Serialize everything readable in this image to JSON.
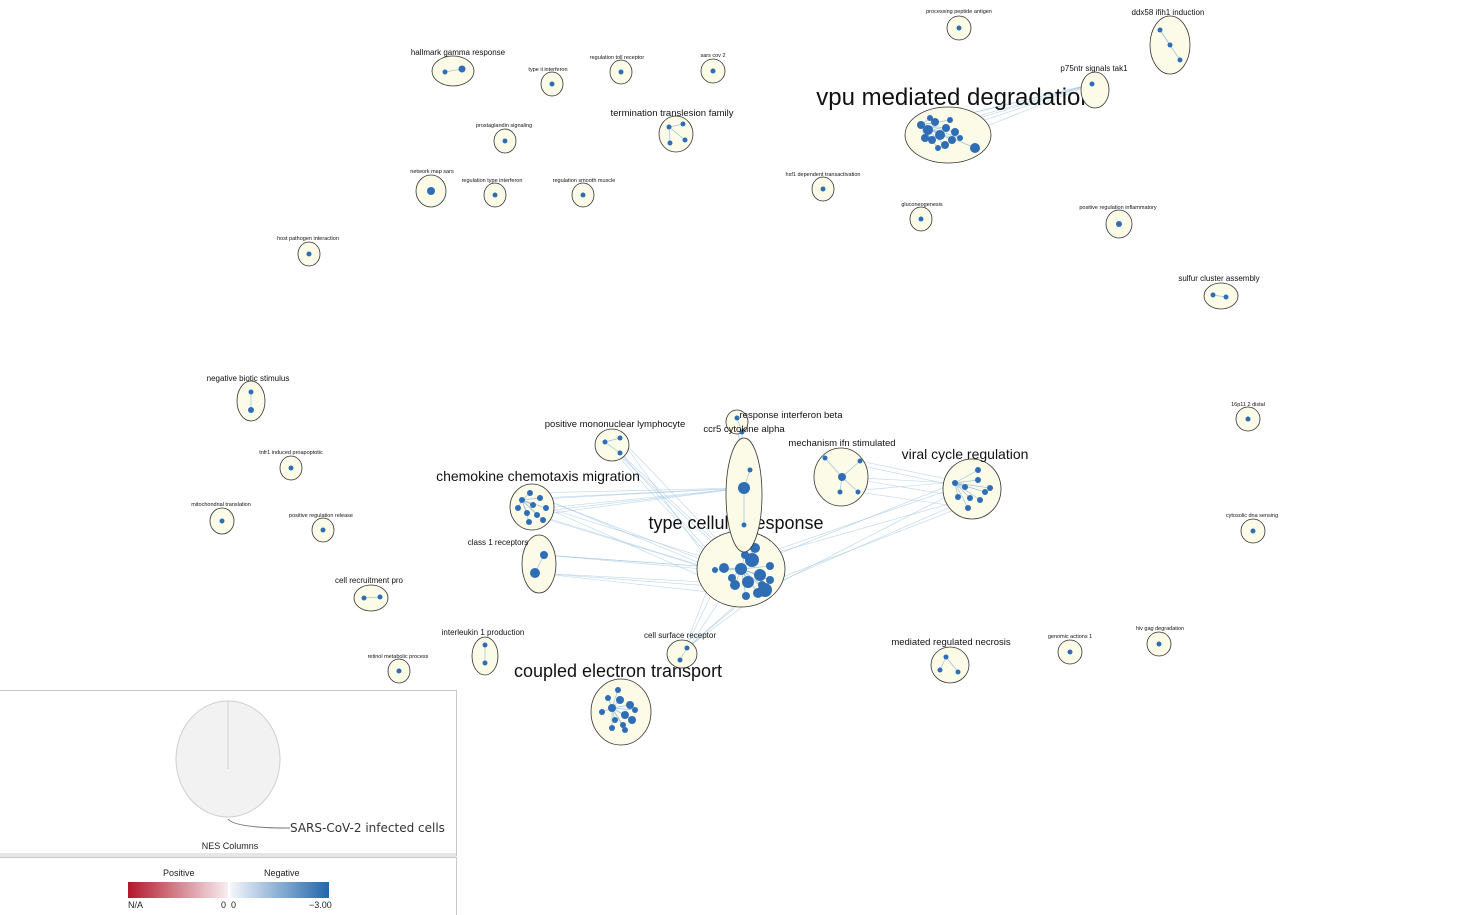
{
  "clusters": [
    {
      "label": "vpu mediated degradation",
      "size": "xl"
    },
    {
      "label": "type cellular response",
      "size": "l"
    },
    {
      "label": "coupled electron transport",
      "size": "l"
    },
    {
      "label": "chemokine chemotaxis migration",
      "size": "m"
    },
    {
      "label": "viral cycle regulation",
      "size": "m"
    },
    {
      "label": "mechanism ifn stimulated",
      "size": "s"
    },
    {
      "label": "positive mononuclear lymphocyte",
      "size": "s"
    },
    {
      "label": "response interferon beta",
      "size": "s"
    },
    {
      "label": "ccr5 cytokine alpha",
      "size": "s"
    },
    {
      "label": "class 1 receptors",
      "size": "xs"
    },
    {
      "label": "cell surface receptor",
      "size": "xs"
    },
    {
      "label": "interleukin 1 production",
      "size": "xs"
    },
    {
      "label": "mediated regulated necrosis",
      "size": "s"
    },
    {
      "label": "termination translesion family",
      "size": "s"
    },
    {
      "label": "hallmark gamma response",
      "size": "xs"
    },
    {
      "label": "ddx58 ifih1 induction",
      "size": "xs"
    },
    {
      "label": "p75ntr signals tak1",
      "size": "xs"
    },
    {
      "label": "negative biotic stimulus",
      "size": "xs"
    },
    {
      "label": "cell recruitment pro",
      "size": "xs"
    },
    {
      "label": "sulfur cluster assembly",
      "size": "xs"
    },
    {
      "label": "processing peptide antigen",
      "size": "xxs"
    },
    {
      "label": "type ii interferon",
      "size": "xxs"
    },
    {
      "label": "regulation toll receptor",
      "size": "xxs"
    },
    {
      "label": "sars cov 2",
      "size": "xxs"
    },
    {
      "label": "prostaglandin signaling",
      "size": "xxs"
    },
    {
      "label": "network map sars",
      "size": "xxs"
    },
    {
      "label": "regulation type interferon",
      "size": "xxs"
    },
    {
      "label": "regulation smooth muscle",
      "size": "xxs"
    },
    {
      "label": "hsf1 dependent transactivation",
      "size": "xxs"
    },
    {
      "label": "gluconeogenesis",
      "size": "xxs"
    },
    {
      "label": "positive regulation inflammatory",
      "size": "xxs"
    },
    {
      "label": "host pathogen interaction",
      "size": "xxs"
    },
    {
      "label": "tnfr1 induced proapoptotic",
      "size": "xxs"
    },
    {
      "label": "mitochondrial translation",
      "size": "xxs"
    },
    {
      "label": "positive regulation release",
      "size": "xxs"
    },
    {
      "label": "retinol metabolic process",
      "size": "xxs"
    },
    {
      "label": "16p11 2 distal",
      "size": "xxs"
    },
    {
      "label": "cytosolic dna sensing",
      "size": "xxs"
    },
    {
      "label": "genomic actions 1",
      "size": "xxs"
    },
    {
      "label": "hiv gag degradation",
      "size": "xxs"
    }
  ],
  "legend": {
    "pie_label": "SARS-CoV-2 infected cells",
    "pie_title": "NES Columns",
    "positive_title": "Positive",
    "negative_title": "Negative",
    "tick_na": "N/A",
    "tick_zero_left": "0",
    "tick_zero_right": "0",
    "tick_min": "−3.00"
  },
  "colors": {
    "node": "#2f6db5",
    "cluster_fill": "#fbfbe8",
    "cluster_stroke": "#333333",
    "edge": "#9cc3e0",
    "positive_end": "#b2182b",
    "negative_end": "#2166ac"
  }
}
